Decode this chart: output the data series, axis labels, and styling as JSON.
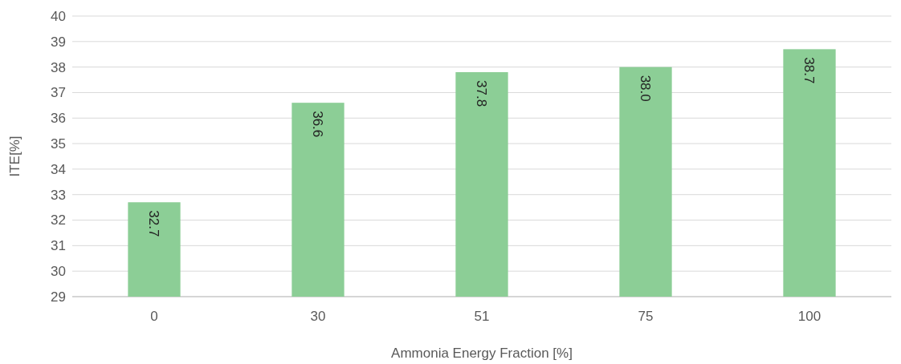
{
  "chart_data": {
    "type": "bar",
    "xlabel": "Ammonia Energy Fraction [%]",
    "ylabel": "ITE[%]",
    "categories": [
      "0",
      "30",
      "51",
      "75",
      "100"
    ],
    "values": [
      32.7,
      36.6,
      37.8,
      38.0,
      38.7
    ],
    "value_labels": [
      "32.7",
      "36.6",
      "37.8",
      "38.0",
      "38.7"
    ],
    "color": "#8cce96",
    "ylim": [
      29,
      40
    ],
    "yticks": [
      29,
      30,
      31,
      32,
      33,
      34,
      35,
      36,
      37,
      38,
      39,
      40
    ],
    "grid": "y"
  }
}
